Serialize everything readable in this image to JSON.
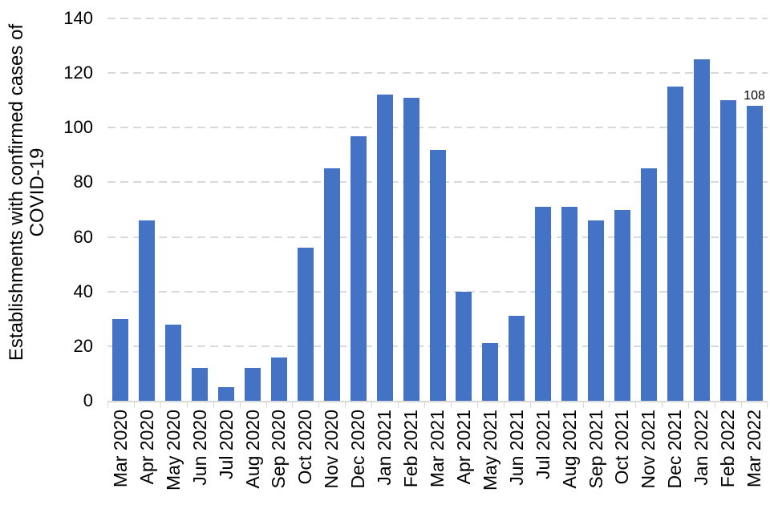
{
  "chart_data": {
    "type": "bar",
    "title": "",
    "xlabel": "",
    "ylabel": "Establishments with confirmed cases of COVID-19",
    "ylabel_lines": [
      "Establishments with confirmed cases of",
      "COVID-19"
    ],
    "categories": [
      "Mar 2020",
      "Apr 2020",
      "May 2020",
      "Jun 2020",
      "Jul 2020",
      "Aug 2020",
      "Sep 2020",
      "Oct 2020",
      "Nov 2020",
      "Dec 2020",
      "Jan 2021",
      "Feb 2021",
      "Mar 2021",
      "Apr 2021",
      "May 2021",
      "Jun 2021",
      "Jul 2021",
      "Aug 2021",
      "Sep 2021",
      "Oct 2021",
      "Nov 2021",
      "Dec 2021",
      "Jan 2022",
      "Feb 2022",
      "Mar 2022"
    ],
    "values": [
      30,
      66,
      28,
      12,
      5,
      12,
      16,
      56,
      85,
      97,
      112,
      111,
      92,
      40,
      21,
      31,
      71,
      71,
      66,
      70,
      85,
      115,
      125,
      110,
      108
    ],
    "ylim": [
      0,
      140
    ],
    "yticks": [
      0,
      20,
      40,
      60,
      80,
      100,
      120,
      140
    ],
    "grid": "horizontal-dashed",
    "legend": "none",
    "annotations": [
      {
        "text": "108",
        "category": "Mar 2022",
        "position": "above-last-bar"
      }
    ],
    "colors": {
      "bar": "#4472C4",
      "gridline": "#D9D9D9",
      "axis": "#D9D9D9",
      "text": "#000000"
    }
  }
}
